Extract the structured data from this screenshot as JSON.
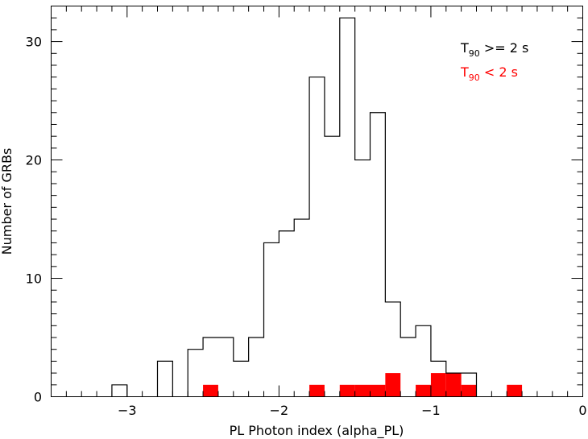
{
  "chart_data": {
    "type": "bar",
    "xlabel": "PL Photon index (alpha_PL)",
    "ylabel": "Number of GRBs",
    "xlim": [
      -3.5,
      0
    ],
    "ylim": [
      0,
      33
    ],
    "x_ticks": [
      -3,
      -2,
      -1,
      0
    ],
    "x_tick_labels": [
      "−3",
      "−2",
      "−1",
      "0"
    ],
    "y_ticks": [
      0,
      10,
      20,
      30
    ],
    "y_tick_labels": [
      "0",
      "10",
      "20",
      "30"
    ],
    "bin_width": 0.1,
    "grid": false,
    "legend_position": "top-right",
    "series": [
      {
        "name_main": "T",
        "name_sub": "90",
        "name_rest": " >= 2 s",
        "style": "step-outline",
        "color": "#000000",
        "bin_starts": [
          -3.1,
          -2.8,
          -2.6,
          -2.5,
          -2.4,
          -2.3,
          -2.2,
          -2.1,
          -2.0,
          -1.9,
          -1.8,
          -1.7,
          -1.6,
          -1.5,
          -1.4,
          -1.3,
          -1.2,
          -1.1,
          -1.0,
          -0.9,
          -0.8
        ],
        "values": [
          1,
          3,
          4,
          5,
          5,
          3,
          5,
          13,
          14,
          15,
          27,
          22,
          32,
          20,
          24,
          8,
          5,
          6,
          3,
          2,
          2
        ]
      },
      {
        "name_main": "T",
        "name_sub": "90",
        "name_rest": " < 2 s",
        "style": "filled",
        "color": "#ff0000",
        "bin_starts": [
          -2.5,
          -1.8,
          -1.6,
          -1.5,
          -1.4,
          -1.3,
          -1.1,
          -1.0,
          -0.9,
          -0.8,
          -0.5
        ],
        "values": [
          1,
          1,
          1,
          1,
          1,
          2,
          1,
          2,
          2,
          1,
          1
        ]
      }
    ]
  }
}
